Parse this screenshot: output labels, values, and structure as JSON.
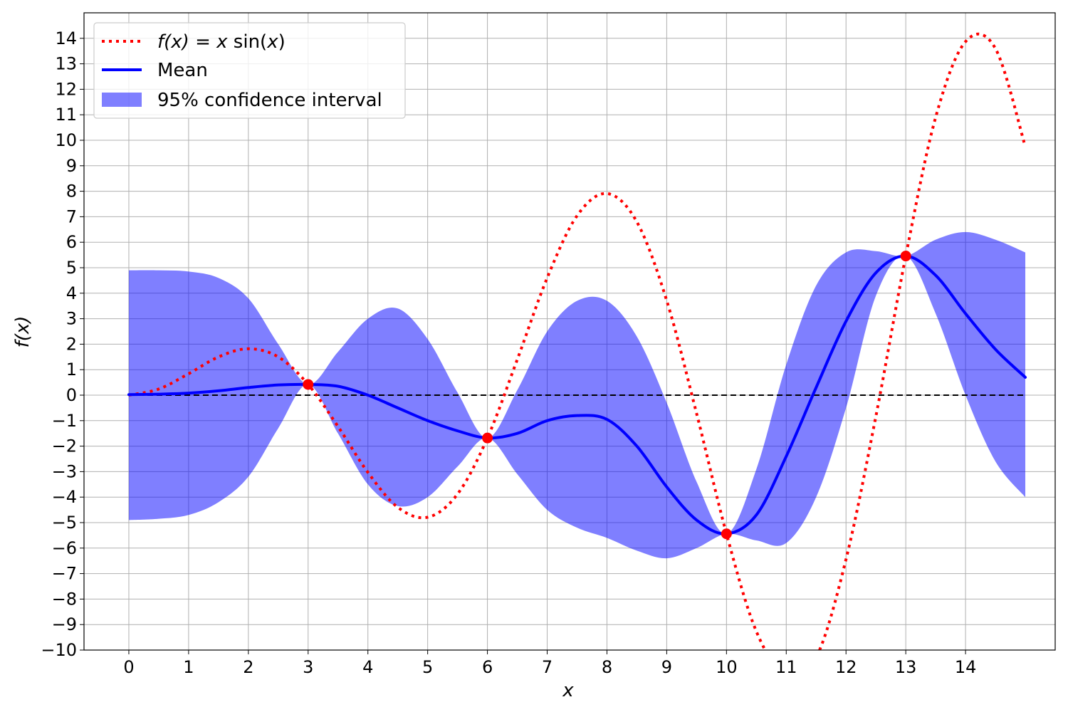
{
  "chart_data": {
    "type": "line",
    "title": "",
    "xlabel": "x",
    "ylabel": "f(x)",
    "xlim": [
      -0.75,
      15.5
    ],
    "ylim": [
      -10,
      15
    ],
    "xticks": [
      0,
      1,
      2,
      3,
      4,
      5,
      6,
      7,
      8,
      9,
      10,
      11,
      12,
      13,
      14
    ],
    "yticks": [
      -10,
      -9,
      -8,
      -7,
      -6,
      -5,
      -4,
      -3,
      -2,
      -1,
      0,
      1,
      2,
      3,
      4,
      5,
      6,
      7,
      8,
      9,
      10,
      11,
      12,
      13,
      14
    ],
    "xtick_labels": [
      "0",
      "1",
      "2",
      "3",
      "4",
      "5",
      "6",
      "7",
      "8",
      "9",
      "10",
      "11",
      "12",
      "13",
      "14"
    ],
    "ytick_labels": [
      "−10",
      "−9",
      "−8",
      "−7",
      "−6",
      "−5",
      "−4",
      "−3",
      "−2",
      "−1",
      "0",
      "1",
      "2",
      "3",
      "4",
      "5",
      "6",
      "7",
      "8",
      "9",
      "10",
      "11",
      "12",
      "13",
      "14"
    ],
    "grid": true,
    "legend_position": "top-left",
    "legend": {
      "function_label": {
        "fx": "f(x)",
        "eq": " = ",
        "x": "x",
        "sin": " sin(",
        "x2": "x",
        "close": ")"
      },
      "mean_label": "Mean",
      "ci_label": "95% confidence interval"
    },
    "series": [
      {
        "name": "f(x) = x sin(x)",
        "style": "dotted",
        "color": "#ff0000",
        "x": [
          0,
          0.5,
          1,
          1.5,
          2,
          2.5,
          3,
          3.5,
          4,
          4.5,
          5,
          5.5,
          6,
          6.5,
          7,
          7.5,
          8,
          8.5,
          9,
          9.5,
          10,
          10.5,
          11,
          11.5,
          12,
          12.5,
          13,
          13.5,
          14,
          14.5,
          15
        ],
        "y": [
          0,
          0.24,
          0.84,
          1.5,
          1.82,
          1.5,
          0.42,
          -1.23,
          -3.03,
          -4.4,
          -4.79,
          -3.88,
          -1.68,
          1.4,
          4.6,
          7.04,
          7.91,
          6.8,
          3.71,
          -0.72,
          -5.44,
          -9.27,
          -10.98,
          -10.29,
          -6.44,
          -0.83,
          5.46,
          10.9,
          13.87,
          13.6,
          9.75
        ]
      },
      {
        "name": "Mean",
        "style": "solid",
        "color": "#0000ff",
        "x": [
          0,
          0.5,
          1,
          1.5,
          2,
          2.5,
          3,
          3.5,
          4,
          4.5,
          5,
          5.5,
          6,
          6.5,
          7,
          7.5,
          8,
          8.5,
          9,
          9.5,
          10,
          10.5,
          11,
          11.5,
          12,
          12.5,
          13,
          13.5,
          14,
          14.5,
          15
        ],
        "y": [
          0.02,
          0.04,
          0.08,
          0.17,
          0.3,
          0.4,
          0.42,
          0.35,
          0.0,
          -0.5,
          -1.0,
          -1.4,
          -1.68,
          -1.5,
          -1.0,
          -0.8,
          -0.95,
          -2.0,
          -3.6,
          -4.9,
          -5.44,
          -4.7,
          -2.4,
          0.3,
          2.9,
          4.8,
          5.46,
          4.7,
          3.2,
          1.8,
          0.7
        ]
      }
    ],
    "confidence_interval": {
      "name": "95% confidence interval",
      "color": "#0000ff",
      "x": [
        0,
        0.5,
        1,
        1.5,
        2,
        2.5,
        3,
        3.5,
        4,
        4.5,
        5,
        5.5,
        6,
        6.5,
        7,
        7.5,
        8,
        8.5,
        9,
        9.5,
        10,
        10.5,
        11,
        11.5,
        12,
        12.5,
        13,
        13.5,
        14,
        14.5,
        15
      ],
      "upper": [
        4.9,
        4.9,
        4.85,
        4.6,
        3.8,
        2.0,
        0.42,
        1.7,
        3.0,
        3.4,
        2.2,
        0.1,
        -1.68,
        0.2,
        2.5,
        3.7,
        3.7,
        2.3,
        -0.3,
        -3.4,
        -5.44,
        -2.9,
        1.2,
        4.3,
        5.6,
        5.65,
        5.46,
        6.1,
        6.4,
        6.1,
        5.6
      ],
      "lower": [
        -4.9,
        -4.85,
        -4.7,
        -4.2,
        -3.2,
        -1.3,
        0.42,
        -1.5,
        -3.5,
        -4.35,
        -4.0,
        -2.8,
        -1.68,
        -3.1,
        -4.5,
        -5.2,
        -5.6,
        -6.1,
        -6.4,
        -6.0,
        -5.44,
        -5.7,
        -5.8,
        -4.0,
        -0.5,
        3.9,
        5.46,
        3.2,
        0.0,
        -2.6,
        -4.0
      ]
    },
    "observations": {
      "x": [
        3,
        6,
        10,
        13
      ],
      "y": [
        0.42,
        -1.68,
        -5.44,
        5.46
      ],
      "color": "#ff0000"
    },
    "baseline": {
      "y": 0,
      "style": "dashed",
      "color": "#000000"
    }
  }
}
